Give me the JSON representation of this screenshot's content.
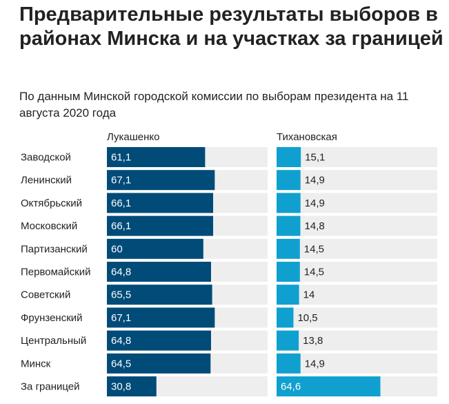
{
  "title": "Предварительные результаты выборов в районах Минска и на участках за границей",
  "subtitle": "По данным Минской городской комиссии по выборам президента на 11 августа 2020 года",
  "colors": {
    "lukashenko": "#004b78",
    "tikhanovskaya": "#10a0d0",
    "track": "#eeeeee",
    "text": "#222222"
  },
  "chart_data": {
    "type": "bar",
    "categories": [
      "Заводской",
      "Ленинский",
      "Октябрьский",
      "Московский",
      "Партизанский",
      "Первомайский",
      "Советский",
      "Фрунзенский",
      "Центральный",
      "Минск",
      "За границей"
    ],
    "series": [
      {
        "name": "Лукашенко",
        "values": [
          61.1,
          67.1,
          66.1,
          66.1,
          60,
          64.8,
          65.5,
          67.1,
          64.8,
          64.5,
          30.8
        ],
        "labels": [
          "61,1",
          "67,1",
          "66,1",
          "66,1",
          "60",
          "64,8",
          "65,5",
          "67,1",
          "64,8",
          "64,5",
          "30,8"
        ]
      },
      {
        "name": "Тихановская",
        "values": [
          15.1,
          14.9,
          14.9,
          14.8,
          14.5,
          14.5,
          14,
          10.5,
          13.8,
          14.9,
          64.6
        ],
        "labels": [
          "15,1",
          "14,9",
          "14,9",
          "14,8",
          "14,5",
          "14,5",
          "14",
          "10,5",
          "13,8",
          "14,9",
          "64,6"
        ]
      }
    ],
    "xlim": [
      0,
      100
    ]
  }
}
